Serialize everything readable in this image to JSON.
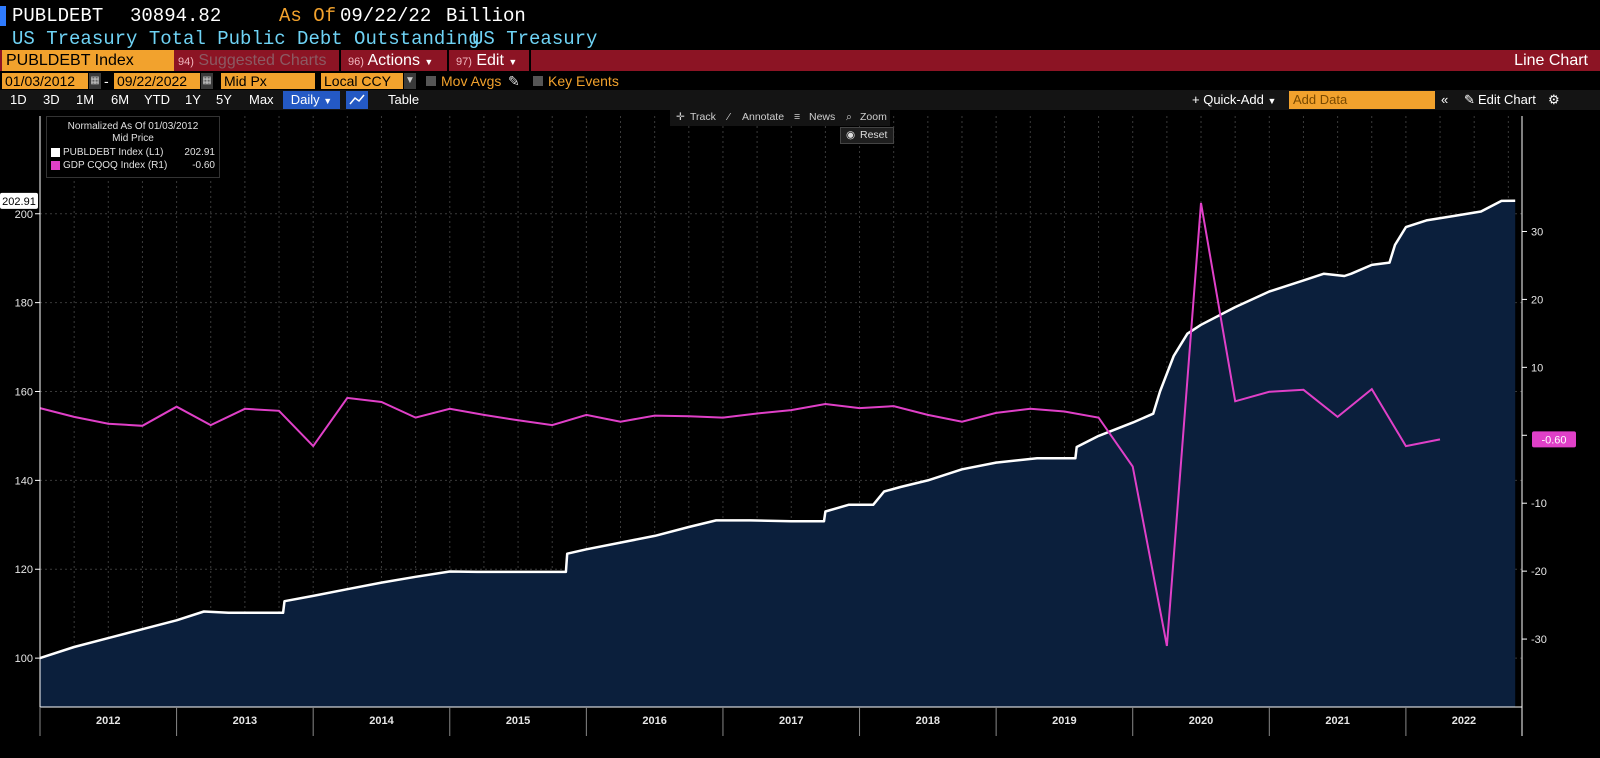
{
  "header": {
    "ticker": "PUBLDEBT",
    "last_value": "30894.82",
    "as_of_label": "As Of",
    "as_of_date": "09/22/22",
    "units": "Billion",
    "description": "US Treasury Total Public Debt Outstanding",
    "source": "US Treasury"
  },
  "menubar": {
    "security": "PUBLDEBT Index",
    "suggested_num": "94)",
    "suggested_label": "Suggested Charts",
    "actions_num": "96)",
    "actions_label": "Actions",
    "edit_num": "97)",
    "edit_label": "Edit",
    "chart_type": "Line Chart"
  },
  "settings": {
    "start_date": "01/03/2012",
    "dash": "-",
    "end_date": "09/22/2022",
    "price_field": "Mid Px",
    "currency": "Local CCY",
    "mov_avgs": "Mov Avgs",
    "key_events": "Key Events"
  },
  "toolbar": {
    "ranges": [
      "1D",
      "3D",
      "1M",
      "6M",
      "YTD",
      "1Y",
      "5Y",
      "Max"
    ],
    "period": "Daily",
    "table": "Table",
    "quick_add": "+ Quick-Add",
    "add_data_placeholder": "Add Data",
    "collapse": "«",
    "edit_chart": "Edit Chart"
  },
  "chart_tools": {
    "track": "Track",
    "annotate": "Annotate",
    "news": "News",
    "zoom": "Zoom",
    "reset": "Reset"
  },
  "legend": {
    "line1": "Normalized As Of 01/03/2012",
    "line2": "Mid Price",
    "series": [
      {
        "name": "PUBLDEBT Index (L1)",
        "value": "202.91",
        "color": "#ffffff"
      },
      {
        "name": "GDP CQOQ Index (R1)",
        "value": "-0.60",
        "color": "#e040c8"
      }
    ]
  },
  "colors": {
    "background": "#000000",
    "area_fill": "#0b1f3c",
    "debt_line": "#ffffff",
    "gdp_line": "#e040c8",
    "accent_orange": "#f2a22d",
    "menu_red": "#8c1424"
  },
  "chart_data": {
    "type": "line",
    "x_range": [
      2012.0,
      2022.85
    ],
    "left_axis": {
      "ylim": [
        89,
        222
      ],
      "ticks": [
        100,
        120,
        140,
        160,
        180,
        200
      ],
      "last_label": "202.91"
    },
    "right_axis": {
      "ylim": [
        -40,
        47
      ],
      "ticks": [
        -30,
        -20,
        -10,
        0,
        10,
        20,
        30
      ],
      "tick_labels": [
        "-30",
        "-20",
        "-10",
        "",
        "10",
        "20",
        "30"
      ],
      "last_label": "-0.60"
    },
    "x_labels": [
      "2012",
      "2013",
      "2014",
      "2015",
      "2016",
      "2017",
      "2018",
      "2019",
      "2020",
      "2021",
      "2022"
    ],
    "grid": true,
    "series": [
      {
        "name": "PUBLDEBT Index (L1)",
        "axis": "left",
        "style": "area",
        "points": [
          [
            2012.0,
            100.0
          ],
          [
            2012.25,
            102.5
          ],
          [
            2012.5,
            104.5
          ],
          [
            2012.75,
            106.5
          ],
          [
            2013.0,
            108.5
          ],
          [
            2013.2,
            110.5
          ],
          [
            2013.38,
            110.2
          ],
          [
            2013.5,
            110.2
          ],
          [
            2013.78,
            110.2
          ],
          [
            2013.79,
            112.8
          ],
          [
            2014.0,
            114.0
          ],
          [
            2014.25,
            115.5
          ],
          [
            2014.5,
            117.0
          ],
          [
            2014.75,
            118.3
          ],
          [
            2015.0,
            119.5
          ],
          [
            2015.2,
            119.4
          ],
          [
            2015.5,
            119.4
          ],
          [
            2015.85,
            119.4
          ],
          [
            2015.86,
            123.5
          ],
          [
            2016.0,
            124.5
          ],
          [
            2016.25,
            126.0
          ],
          [
            2016.5,
            127.5
          ],
          [
            2016.75,
            129.5
          ],
          [
            2016.95,
            131.0
          ],
          [
            2017.2,
            131.0
          ],
          [
            2017.5,
            130.8
          ],
          [
            2017.74,
            130.8
          ],
          [
            2017.75,
            133.0
          ],
          [
            2017.92,
            134.5
          ],
          [
            2018.1,
            134.5
          ],
          [
            2018.18,
            137.5
          ],
          [
            2018.3,
            138.5
          ],
          [
            2018.5,
            140.0
          ],
          [
            2018.75,
            142.5
          ],
          [
            2019.0,
            144.0
          ],
          [
            2019.3,
            145.0
          ],
          [
            2019.58,
            145.0
          ],
          [
            2019.59,
            147.5
          ],
          [
            2019.75,
            150.0
          ],
          [
            2020.0,
            153.0
          ],
          [
            2020.15,
            155.0
          ],
          [
            2020.2,
            160.0
          ],
          [
            2020.3,
            168.0
          ],
          [
            2020.4,
            173.0
          ],
          [
            2020.5,
            175.0
          ],
          [
            2020.75,
            179.0
          ],
          [
            2021.0,
            182.5
          ],
          [
            2021.25,
            185.0
          ],
          [
            2021.4,
            186.5
          ],
          [
            2021.55,
            186.0
          ],
          [
            2021.6,
            186.5
          ],
          [
            2021.75,
            188.5
          ],
          [
            2021.88,
            189.0
          ],
          [
            2021.92,
            193.0
          ],
          [
            2022.0,
            197.0
          ],
          [
            2022.15,
            198.5
          ],
          [
            2022.35,
            199.5
          ],
          [
            2022.55,
            200.5
          ],
          [
            2022.7,
            202.9
          ],
          [
            2022.8,
            202.91
          ]
        ]
      },
      {
        "name": "GDP CQOQ Index (R1)",
        "axis": "right",
        "style": "line",
        "points": [
          [
            2012.0,
            4.0
          ],
          [
            2012.25,
            2.7
          ],
          [
            2012.5,
            1.7
          ],
          [
            2012.75,
            1.4
          ],
          [
            2013.0,
            4.2
          ],
          [
            2013.25,
            1.5
          ],
          [
            2013.5,
            3.9
          ],
          [
            2013.75,
            3.6
          ],
          [
            2014.0,
            -1.6
          ],
          [
            2014.25,
            5.5
          ],
          [
            2014.5,
            4.9
          ],
          [
            2014.75,
            2.6
          ],
          [
            2015.0,
            3.9
          ],
          [
            2015.25,
            3.0
          ],
          [
            2015.5,
            2.2
          ],
          [
            2015.75,
            1.5
          ],
          [
            2016.0,
            3.0
          ],
          [
            2016.25,
            2.0
          ],
          [
            2016.5,
            2.9
          ],
          [
            2016.75,
            2.8
          ],
          [
            2017.0,
            2.6
          ],
          [
            2017.25,
            3.2
          ],
          [
            2017.5,
            3.7
          ],
          [
            2017.75,
            4.6
          ],
          [
            2018.0,
            4.0
          ],
          [
            2018.25,
            4.3
          ],
          [
            2018.5,
            3.0
          ],
          [
            2018.75,
            2.0
          ],
          [
            2019.0,
            3.3
          ],
          [
            2019.25,
            3.9
          ],
          [
            2019.5,
            3.5
          ],
          [
            2019.75,
            2.6
          ],
          [
            2020.0,
            -4.6
          ],
          [
            2020.25,
            -31.0
          ],
          [
            2020.5,
            34.2
          ],
          [
            2020.75,
            5.0
          ],
          [
            2021.0,
            6.4
          ],
          [
            2021.25,
            6.7
          ],
          [
            2021.5,
            2.7
          ],
          [
            2021.75,
            6.8
          ],
          [
            2022.0,
            -1.6
          ],
          [
            2022.25,
            -0.6
          ]
        ]
      }
    ]
  }
}
